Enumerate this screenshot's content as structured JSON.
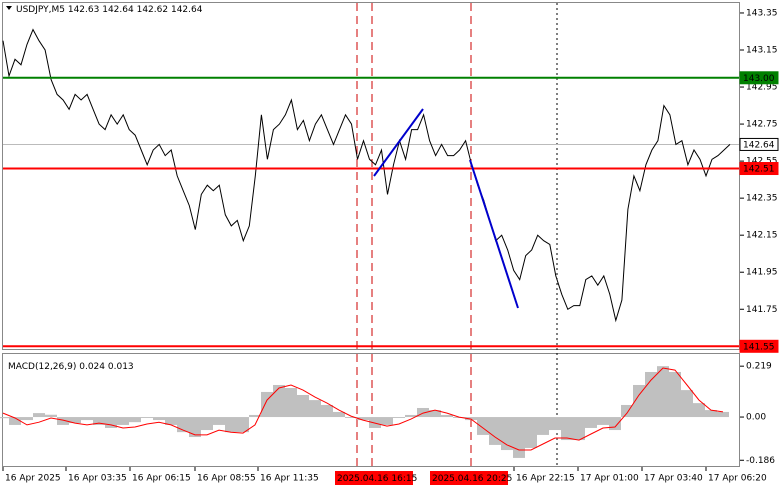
{
  "chart_data": [
    {
      "type": "line",
      "title": "USDJPY,M5",
      "header_values": [
        142.63,
        142.64,
        142.62,
        142.64
      ],
      "color": "#000000",
      "values": [
        143.2,
        143.01,
        143.1,
        143.07,
        143.18,
        143.26,
        143.2,
        143.15,
        142.99,
        142.91,
        142.88,
        142.83,
        142.91,
        142.88,
        142.91,
        142.83,
        142.75,
        142.72,
        142.8,
        142.75,
        142.8,
        142.72,
        142.69,
        142.61,
        142.53,
        142.61,
        142.64,
        142.58,
        142.61,
        142.47,
        142.39,
        142.31,
        142.18,
        142.37,
        142.42,
        142.39,
        142.42,
        142.26,
        142.2,
        142.23,
        142.12,
        142.2,
        142.47,
        142.8,
        142.56,
        142.72,
        142.75,
        142.8,
        142.88,
        142.72,
        142.77,
        142.66,
        142.75,
        142.8,
        142.72,
        142.64,
        142.72,
        142.8,
        142.75,
        142.56,
        142.66,
        142.56,
        142.53,
        142.61,
        142.37,
        142.53,
        142.66,
        142.56,
        142.72,
        142.72,
        142.8,
        142.66,
        142.58,
        142.64,
        142.58,
        142.58,
        142.61,
        142.66,
        142.53,
        142.42,
        142.34,
        142.23,
        142.12,
        142.15,
        142.07,
        141.96,
        141.91,
        142.04,
        142.07,
        142.15,
        142.12,
        142.1,
        141.93,
        141.83,
        141.75,
        141.77,
        141.77,
        141.91,
        141.93,
        141.88,
        141.93,
        141.83,
        141.69,
        141.8,
        142.29,
        142.47,
        142.39,
        142.53,
        142.61,
        142.66,
        142.85,
        142.8,
        142.64,
        142.66,
        142.53,
        142.61,
        142.56,
        142.47,
        142.56,
        142.58,
        142.61,
        142.64
      ],
      "ylim": [
        141.53,
        143.42
      ],
      "yticks": [
        143.35,
        143.15,
        142.95,
        142.75,
        142.55,
        142.35,
        142.15,
        141.95,
        141.75
      ],
      "levels": [
        {
          "value": 143,
          "label": "143.00"
        },
        142.51,
        141.55
      ],
      "level_colors": [
        "#008000",
        "#ff0000",
        "#ff0000"
      ],
      "last_price": 142.64,
      "x_labels": [
        "16 Apr 2025",
        "16 Apr 03:35",
        "16 Apr 06:15",
        "16 Apr 08:55",
        "16 Apr 11:35",
        "16 Apr 22:15",
        "17 Apr 01:00",
        "17 Apr 03:40",
        "17 Apr 06:20"
      ],
      "highlighted_labels": [
        "2025.04.16 16:15",
        "2025.04.16 20:25"
      ]
    },
    {
      "type": "macd",
      "title": "MACD(12,26,9)",
      "header_values": [
        0.024,
        0.013
      ],
      "histogram_color": "#c0c0c0",
      "signal_color": "#ff0000",
      "histogram": [
        -0.005,
        -0.034,
        -0.013,
        0.017,
        0.01,
        -0.034,
        -0.026,
        -0.013,
        -0.034,
        -0.047,
        -0.034,
        -0.022,
        -0.004,
        -0.013,
        -0.034,
        -0.065,
        -0.086,
        -0.056,
        -0.034,
        -0.065,
        -0.065,
        0.009,
        0.108,
        0.138,
        0.125,
        0.095,
        0.073,
        0.052,
        0.022,
        -0.004,
        -0.013,
        -0.047,
        -0.034,
        -0.004,
        0.009,
        0.039,
        0.03,
        0.009,
        -0.004,
        -0.013,
        -0.077,
        -0.12,
        -0.142,
        -0.176,
        -0.133,
        -0.077,
        -0.056,
        -0.099,
        -0.099,
        -0.047,
        -0.034,
        -0.056,
        0.052,
        0.138,
        0.194,
        0.219,
        0.194,
        0.116,
        0.06,
        0.03,
        0.022
      ],
      "signal": [
        0.017,
        -0.004,
        -0.034,
        -0.022,
        -0.004,
        -0.013,
        -0.026,
        -0.034,
        -0.026,
        -0.034,
        -0.047,
        -0.043,
        -0.03,
        -0.022,
        -0.034,
        -0.056,
        -0.077,
        -0.077,
        -0.056,
        -0.065,
        -0.069,
        -0.034,
        0.073,
        0.125,
        0.138,
        0.116,
        0.086,
        0.06,
        0.03,
        0.004,
        -0.013,
        -0.026,
        -0.039,
        -0.03,
        -0.009,
        0.017,
        0.03,
        0.017,
        0,
        -0.009,
        -0.047,
        -0.086,
        -0.12,
        -0.142,
        -0.142,
        -0.116,
        -0.09,
        -0.09,
        -0.099,
        -0.073,
        -0.047,
        -0.043,
        0.017,
        0.095,
        0.159,
        0.211,
        0.202,
        0.138,
        0.073,
        0.03,
        0.022
      ],
      "ylim": [
        -0.215,
        0.28
      ],
      "yticks": [
        0.219,
        {
          "value": 0,
          "label": "0.00"
        },
        -0.186
      ]
    }
  ]
}
